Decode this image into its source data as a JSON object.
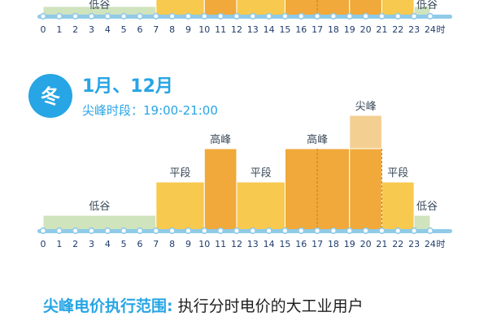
{
  "colors": {
    "accent": "#27a5e5",
    "low": "#cfe3bd",
    "flat": "#f7c94e",
    "high": "#f0a93a",
    "peak": "#f3cf92",
    "axis_line": "#8fcae8",
    "tick_text": "#1f3b6b",
    "label_text": "#3a4a5a"
  },
  "top_chart": {
    "labels": {
      "low_left": "低谷",
      "low_right": "低谷"
    },
    "ticks": [
      "0",
      "1",
      "2",
      "3",
      "4",
      "5",
      "6",
      "7",
      "8",
      "9",
      "10",
      "11",
      "12",
      "13",
      "14",
      "15",
      "16",
      "17",
      "18",
      "19",
      "20",
      "21",
      "22",
      "23",
      "24"
    ],
    "unit": "时"
  },
  "winter": {
    "badge": "冬",
    "title": "1月、12月",
    "subtitle": "尖峰时段：19:00-21:00"
  },
  "chart_data": {
    "type": "bar",
    "x_unit": "时",
    "xlim": [
      0,
      24
    ],
    "ticks": [
      "0",
      "1",
      "2",
      "3",
      "4",
      "5",
      "6",
      "7",
      "8",
      "9",
      "10",
      "11",
      "12",
      "13",
      "14",
      "15",
      "16",
      "17",
      "18",
      "19",
      "20",
      "21",
      "22",
      "23",
      "24"
    ],
    "periods": [
      {
        "start": 0,
        "end": 7,
        "level": 1,
        "type": "low",
        "label": "低谷"
      },
      {
        "start": 7,
        "end": 10,
        "level": 2,
        "type": "flat",
        "label": "平段"
      },
      {
        "start": 10,
        "end": 12,
        "level": 3,
        "type": "high",
        "label": "高峰"
      },
      {
        "start": 12,
        "end": 15,
        "level": 2,
        "type": "flat",
        "label": "平段"
      },
      {
        "start": 15,
        "end": 19,
        "level": 3,
        "type": "high",
        "label": "高峰"
      },
      {
        "start": 19,
        "end": 21,
        "level": 3,
        "type": "high",
        "label": ""
      },
      {
        "start": 19,
        "end": 21,
        "level": 4,
        "type": "peak",
        "label": "尖峰",
        "overlay": true
      },
      {
        "start": 21,
        "end": 23,
        "level": 2,
        "type": "flat",
        "label": "平段"
      },
      {
        "start": 23,
        "end": 24,
        "level": 1,
        "type": "low",
        "label": "低谷"
      }
    ]
  },
  "footer": {
    "key": "尖峰电价执行范围:",
    "value": "执行分时电价的大工业用户"
  }
}
